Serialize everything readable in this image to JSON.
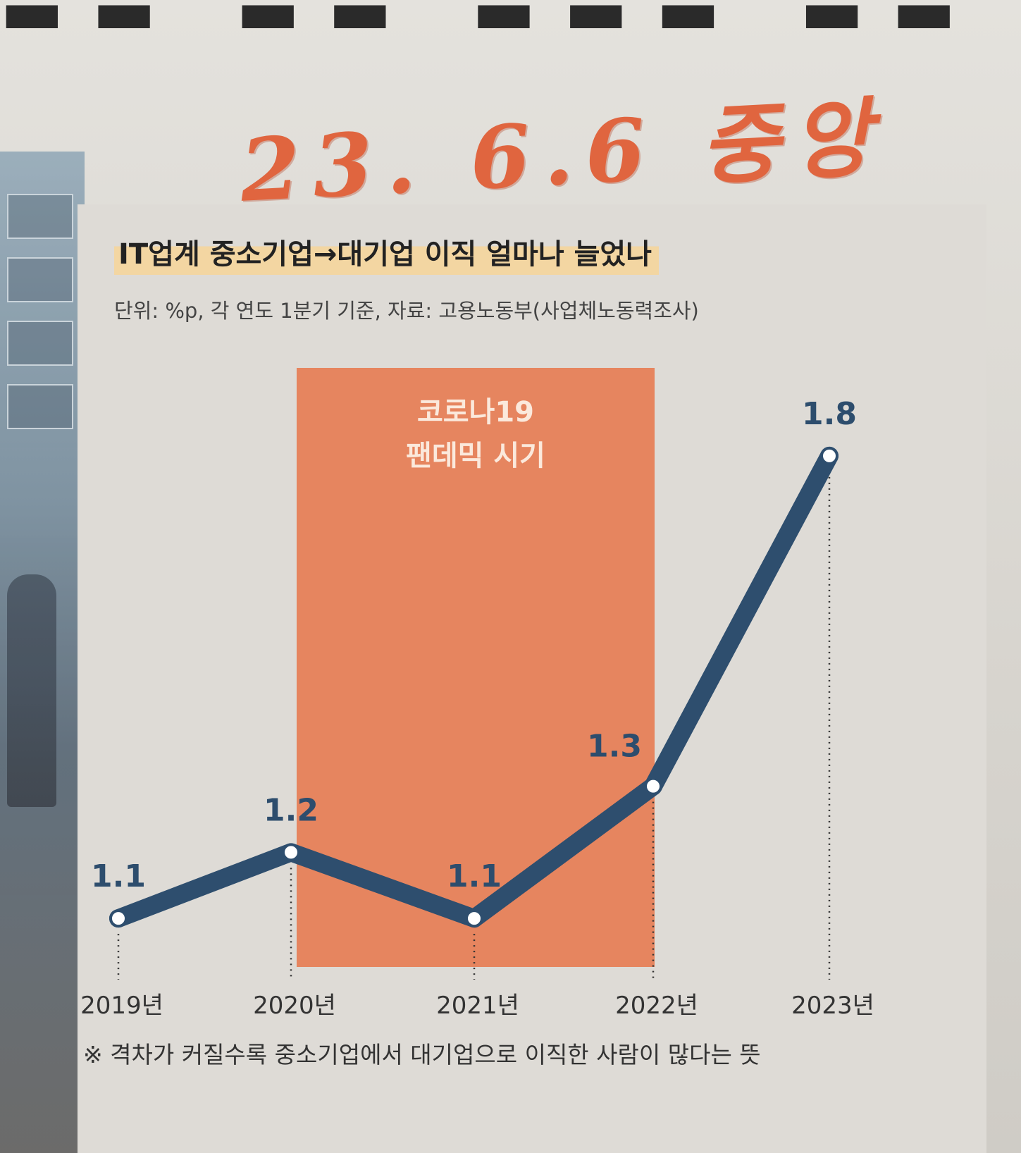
{
  "stamp": {
    "text": "23. 6.6 중앙"
  },
  "graphic": {
    "title": "IT업계 중소기업→대기업 이직 얼마나 늘었나",
    "unit_line": "단위: %p, 각 연도 1분기 기준, 자료: 고용노동부(사업체노동력조사)",
    "note": "※ 격차가 커질수록 중소기업에서 대기업으로 이직한 사람이 많다는 뜻"
  },
  "chart_data": {
    "type": "line",
    "title": "IT업계 중소기업→대기업 이직 얼마나 늘었나",
    "unit": "%p",
    "categories": [
      "2019년",
      "2020년",
      "2021년",
      "2022년",
      "2023년"
    ],
    "series": [
      {
        "values": [
          1.1,
          1.2,
          1.1,
          1.3,
          1.8
        ]
      }
    ],
    "data_labels": [
      "1.1",
      "1.2",
      "1.1",
      "1.3",
      "1.8"
    ],
    "highlight_band": {
      "from": "2020년",
      "to": "2022년",
      "label_lines": [
        "코로나19",
        "팬데믹 시기"
      ]
    },
    "ylim": [
      1.05,
      1.85
    ],
    "grid": false,
    "colors": {
      "line": "#2e4e6e",
      "band": "#e6855f",
      "band_text": "#fbe9dc",
      "label": "#2d4d6d"
    }
  }
}
